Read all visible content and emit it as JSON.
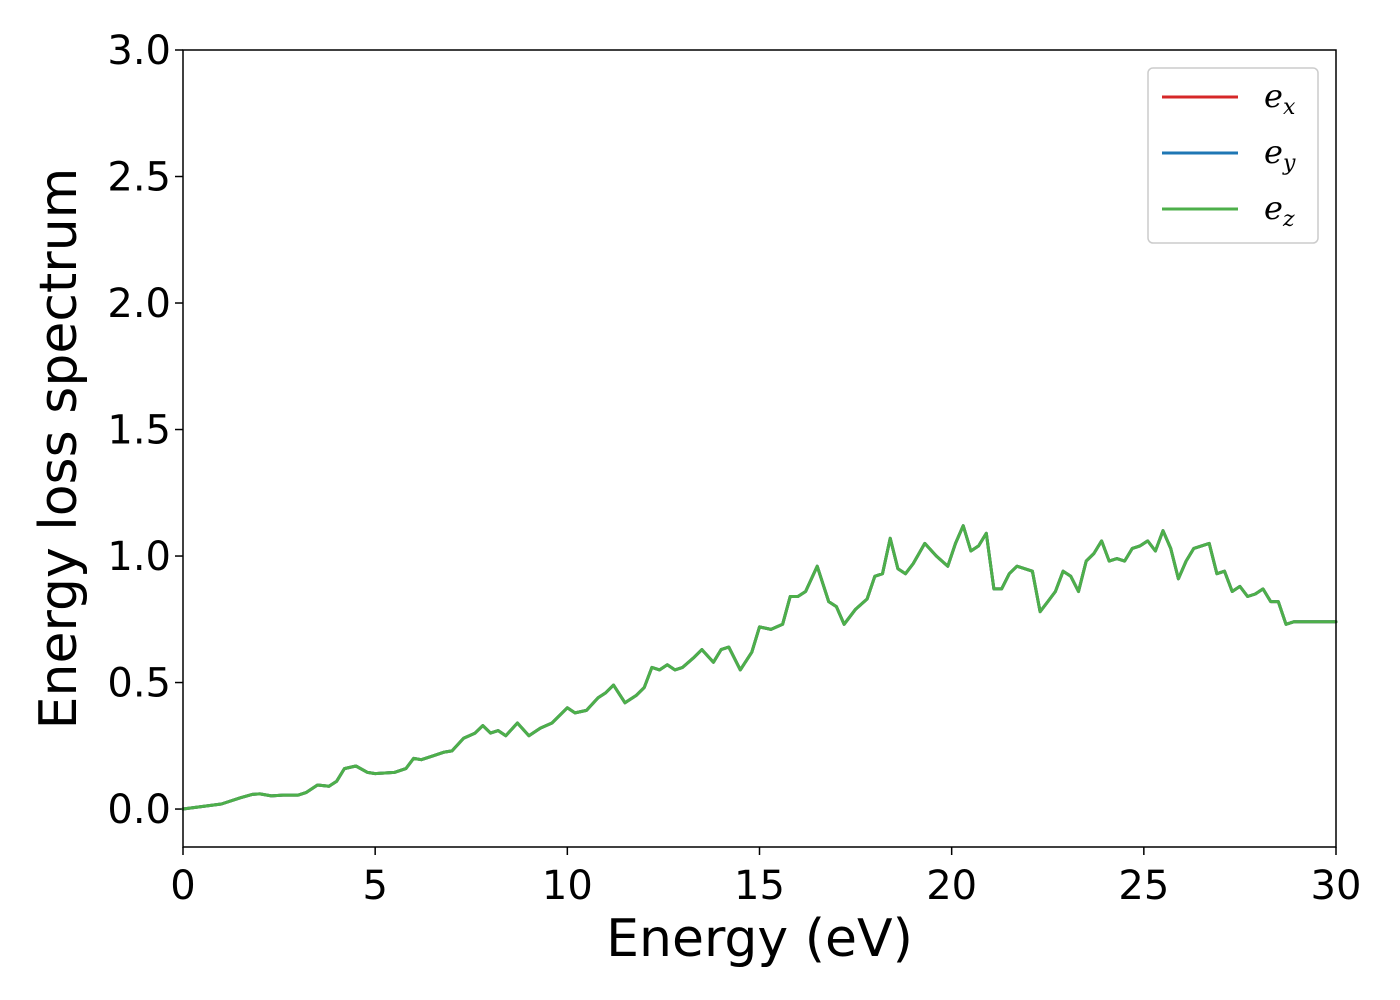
{
  "chart_data": {
    "type": "line",
    "xlabel": "Energy (eV)",
    "ylabel": "Energy loss spectrum",
    "xlim": [
      0,
      30
    ],
    "ylim": [
      -0.15,
      3.0
    ],
    "xticks": [
      0,
      5,
      10,
      15,
      20,
      25,
      30
    ],
    "xtick_labels": [
      "0",
      "5",
      "10",
      "15",
      "20",
      "25",
      "30"
    ],
    "yticks": [
      0.0,
      0.5,
      1.0,
      1.5,
      2.0,
      2.5,
      3.0
    ],
    "ytick_labels": [
      "0.0",
      "0.5",
      "1.0",
      "1.5",
      "2.0",
      "2.5",
      "3.0"
    ],
    "grid": false,
    "legend_position": "top-right",
    "x": [
      0,
      0.5,
      1.0,
      1.5,
      1.8,
      2.0,
      2.3,
      2.6,
      3.0,
      3.2,
      3.5,
      3.8,
      4.0,
      4.2,
      4.5,
      4.8,
      5.0,
      5.5,
      5.8,
      6.0,
      6.2,
      6.5,
      6.8,
      7.0,
      7.3,
      7.6,
      7.8,
      8.0,
      8.2,
      8.4,
      8.7,
      9.0,
      9.3,
      9.6,
      10.0,
      10.2,
      10.5,
      10.8,
      11.0,
      11.2,
      11.5,
      11.8,
      12.0,
      12.2,
      12.4,
      12.6,
      12.8,
      13.0,
      13.3,
      13.5,
      13.8,
      14.0,
      14.2,
      14.5,
      14.8,
      15.0,
      15.3,
      15.6,
      15.8,
      16.0,
      16.2,
      16.5,
      16.8,
      17.0,
      17.2,
      17.5,
      17.8,
      18.0,
      18.2,
      18.4,
      18.6,
      18.8,
      19.0,
      19.3,
      19.6,
      19.9,
      20.1,
      20.3,
      20.5,
      20.7,
      20.9,
      21.1,
      21.3,
      21.5,
      21.7,
      21.9,
      22.1,
      22.3,
      22.5,
      22.7,
      22.9,
      23.1,
      23.3,
      23.5,
      23.7,
      23.9,
      24.1,
      24.3,
      24.5,
      24.7,
      24.9,
      25.1,
      25.3,
      25.5,
      25.7,
      25.9,
      26.1,
      26.3,
      26.5,
      26.7,
      26.9,
      27.1,
      27.3,
      27.5,
      27.7,
      27.9,
      28.1,
      28.3,
      28.5,
      28.7,
      28.9,
      29.1,
      29.3,
      29.5,
      29.7,
      30.0
    ],
    "series": [
      {
        "name": "e_x",
        "legend_base": "e",
        "legend_sub": "x",
        "color": "#d62728",
        "values": [
          0.0,
          0.01,
          0.02,
          0.045,
          0.058,
          0.06,
          0.052,
          0.055,
          0.055,
          0.065,
          0.095,
          0.09,
          0.11,
          0.16,
          0.17,
          0.145,
          0.14,
          0.145,
          0.16,
          0.2,
          0.195,
          0.21,
          0.225,
          0.23,
          0.28,
          0.3,
          0.33,
          0.3,
          0.31,
          0.29,
          0.34,
          0.29,
          0.32,
          0.34,
          0.4,
          0.38,
          0.39,
          0.44,
          0.46,
          0.49,
          0.42,
          0.45,
          0.48,
          0.56,
          0.55,
          0.57,
          0.55,
          0.56,
          0.6,
          0.63,
          0.58,
          0.63,
          0.64,
          0.55,
          0.62,
          0.72,
          0.71,
          0.73,
          0.84,
          0.84,
          0.86,
          0.96,
          0.82,
          0.8,
          0.73,
          0.79,
          0.83,
          0.92,
          0.93,
          1.07,
          0.95,
          0.93,
          0.97,
          1.05,
          1.0,
          0.96,
          1.05,
          1.12,
          1.02,
          1.04,
          1.09,
          0.87,
          0.87,
          0.93,
          0.96,
          0.95,
          0.94,
          0.78,
          0.82,
          0.86,
          0.94,
          0.92,
          0.86,
          0.98,
          1.01,
          1.06,
          0.98,
          0.99,
          0.98,
          1.03,
          1.04,
          1.06,
          1.02,
          1.1,
          1.03,
          0.91,
          0.98,
          1.03,
          1.04,
          1.05,
          0.93,
          0.94,
          0.86,
          0.88,
          0.84,
          0.85,
          0.87,
          0.82,
          0.82,
          0.73,
          0.74,
          0.74,
          0.74,
          0.74,
          0.74,
          0.74
        ]
      },
      {
        "name": "e_y",
        "legend_base": "e",
        "legend_sub": "y",
        "color": "#1f77b4",
        "values": [
          0.0,
          0.01,
          0.02,
          0.045,
          0.058,
          0.06,
          0.052,
          0.055,
          0.055,
          0.065,
          0.095,
          0.09,
          0.11,
          0.16,
          0.17,
          0.145,
          0.14,
          0.145,
          0.16,
          0.2,
          0.195,
          0.21,
          0.225,
          0.23,
          0.28,
          0.3,
          0.33,
          0.3,
          0.31,
          0.29,
          0.34,
          0.29,
          0.32,
          0.34,
          0.4,
          0.38,
          0.39,
          0.44,
          0.46,
          0.49,
          0.42,
          0.45,
          0.48,
          0.56,
          0.55,
          0.57,
          0.55,
          0.56,
          0.6,
          0.63,
          0.58,
          0.63,
          0.64,
          0.55,
          0.62,
          0.72,
          0.71,
          0.73,
          0.84,
          0.84,
          0.86,
          0.96,
          0.82,
          0.8,
          0.73,
          0.79,
          0.83,
          0.92,
          0.93,
          1.07,
          0.95,
          0.93,
          0.97,
          1.05,
          1.0,
          0.96,
          1.05,
          1.12,
          1.02,
          1.04,
          1.09,
          0.87,
          0.87,
          0.93,
          0.96,
          0.95,
          0.94,
          0.78,
          0.82,
          0.86,
          0.94,
          0.92,
          0.86,
          0.98,
          1.01,
          1.06,
          0.98,
          0.99,
          0.98,
          1.03,
          1.04,
          1.06,
          1.02,
          1.1,
          1.03,
          0.91,
          0.98,
          1.03,
          1.04,
          1.05,
          0.93,
          0.94,
          0.86,
          0.88,
          0.84,
          0.85,
          0.87,
          0.82,
          0.82,
          0.73,
          0.74,
          0.74,
          0.74,
          0.74,
          0.74,
          0.74
        ]
      },
      {
        "name": "e_z",
        "legend_base": "e",
        "legend_sub": "z",
        "color": "#4daf4a",
        "values": [
          0.0,
          0.01,
          0.02,
          0.045,
          0.058,
          0.06,
          0.052,
          0.055,
          0.055,
          0.065,
          0.095,
          0.09,
          0.11,
          0.16,
          0.17,
          0.145,
          0.14,
          0.145,
          0.16,
          0.2,
          0.195,
          0.21,
          0.225,
          0.23,
          0.28,
          0.3,
          0.33,
          0.3,
          0.31,
          0.29,
          0.34,
          0.29,
          0.32,
          0.34,
          0.4,
          0.38,
          0.39,
          0.44,
          0.46,
          0.49,
          0.42,
          0.45,
          0.48,
          0.56,
          0.55,
          0.57,
          0.55,
          0.56,
          0.6,
          0.63,
          0.58,
          0.63,
          0.64,
          0.55,
          0.62,
          0.72,
          0.71,
          0.73,
          0.84,
          0.84,
          0.86,
          0.96,
          0.82,
          0.8,
          0.73,
          0.79,
          0.83,
          0.92,
          0.93,
          1.07,
          0.95,
          0.93,
          0.97,
          1.05,
          1.0,
          0.96,
          1.05,
          1.12,
          1.02,
          1.04,
          1.09,
          0.87,
          0.87,
          0.93,
          0.96,
          0.95,
          0.94,
          0.78,
          0.82,
          0.86,
          0.94,
          0.92,
          0.86,
          0.98,
          1.01,
          1.06,
          0.98,
          0.99,
          0.98,
          1.03,
          1.04,
          1.06,
          1.02,
          1.1,
          1.03,
          0.91,
          0.98,
          1.03,
          1.04,
          1.05,
          0.93,
          0.94,
          0.86,
          0.88,
          0.84,
          0.85,
          0.87,
          0.82,
          0.82,
          0.73,
          0.74,
          0.74,
          0.74,
          0.74,
          0.74,
          0.74
        ]
      }
    ]
  }
}
